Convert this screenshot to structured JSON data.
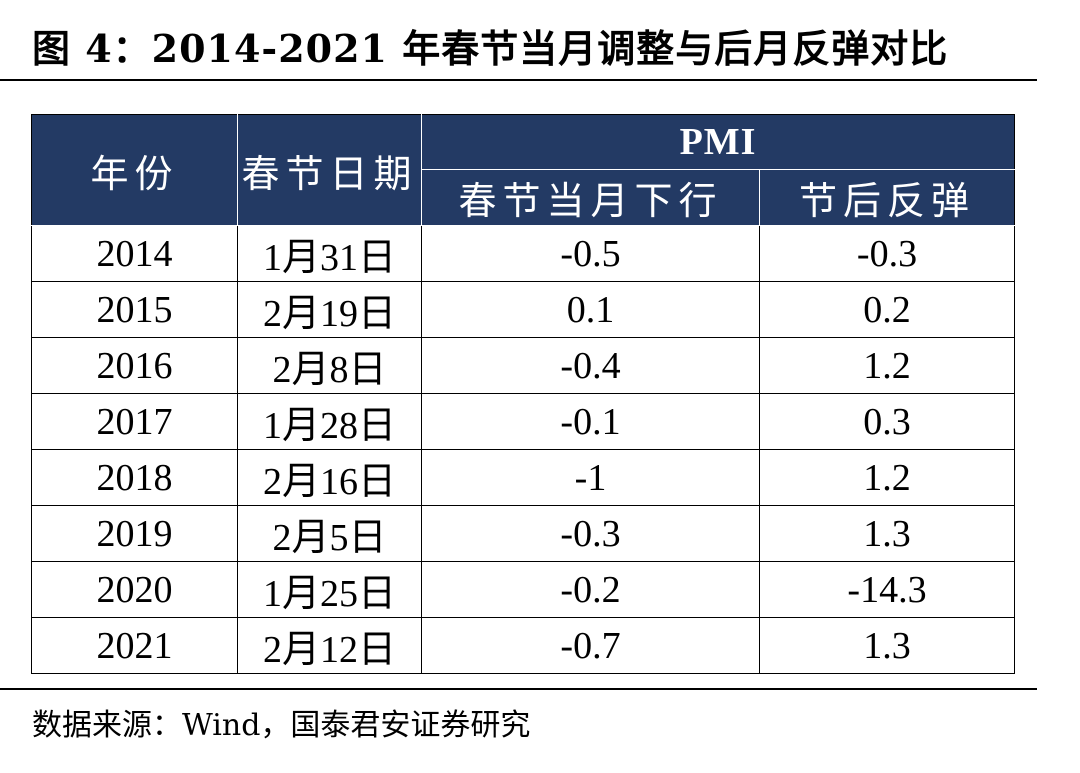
{
  "title": "图 4：2014-2021 年春节当月调整与后月反弹对比",
  "table": {
    "headers": {
      "year": "年份",
      "date": "春节日期",
      "group": "PMI",
      "decline": "春节当月下行",
      "rebound": "节后反弹"
    },
    "rows": [
      {
        "year": "2014",
        "date": "1月31日",
        "decline": "-0.5",
        "rebound": "-0.3"
      },
      {
        "year": "2015",
        "date": "2月19日",
        "decline": "0.1",
        "rebound": "0.2"
      },
      {
        "year": "2016",
        "date": "2月8日",
        "decline": "-0.4",
        "rebound": "1.2"
      },
      {
        "year": "2017",
        "date": "1月28日",
        "decline": "-0.1",
        "rebound": "0.3"
      },
      {
        "year": "2018",
        "date": "2月16日",
        "decline": "-1",
        "rebound": "1.2"
      },
      {
        "year": "2019",
        "date": "2月5日",
        "decline": "-0.3",
        "rebound": "1.3"
      },
      {
        "year": "2020",
        "date": "1月25日",
        "decline": "-0.2",
        "rebound": "-14.3"
      },
      {
        "year": "2021",
        "date": "2月12日",
        "decline": "-0.7",
        "rebound": "1.3"
      }
    ]
  },
  "source": "数据来源：Wind，国泰君安证券研究",
  "colors": {
    "header_bg": "#233a64",
    "header_text": "#ffffff"
  }
}
